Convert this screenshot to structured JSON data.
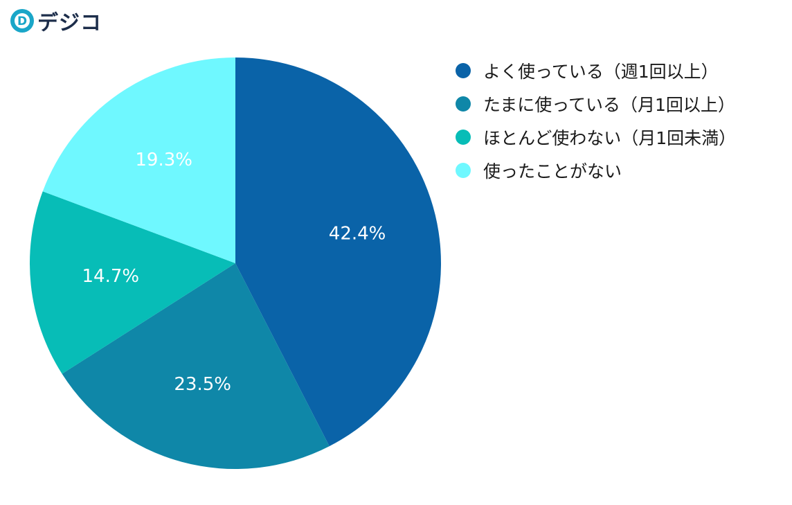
{
  "brand": {
    "name": "デジコ",
    "mark_letter": "D",
    "mark_color": "#1aa6c8",
    "text_color": "#1c2d4a"
  },
  "chart_data": {
    "type": "pie",
    "title": "",
    "categories": [
      "よく使っている（週1回以上）",
      "たまに使っている（月1回以上）",
      "ほとんど使わない（月1回未満）",
      "使ったことがない"
    ],
    "values": [
      42.4,
      23.5,
      14.7,
      19.3
    ],
    "value_labels": [
      "42.4%",
      "23.5%",
      "14.7%",
      "19.3%"
    ],
    "colors": [
      "#0a63a8",
      "#0f87a8",
      "#07bdb7",
      "#6ff8ff"
    ],
    "start_angle": "12 o'clock",
    "direction": "clockwise",
    "legend_position": "right"
  }
}
